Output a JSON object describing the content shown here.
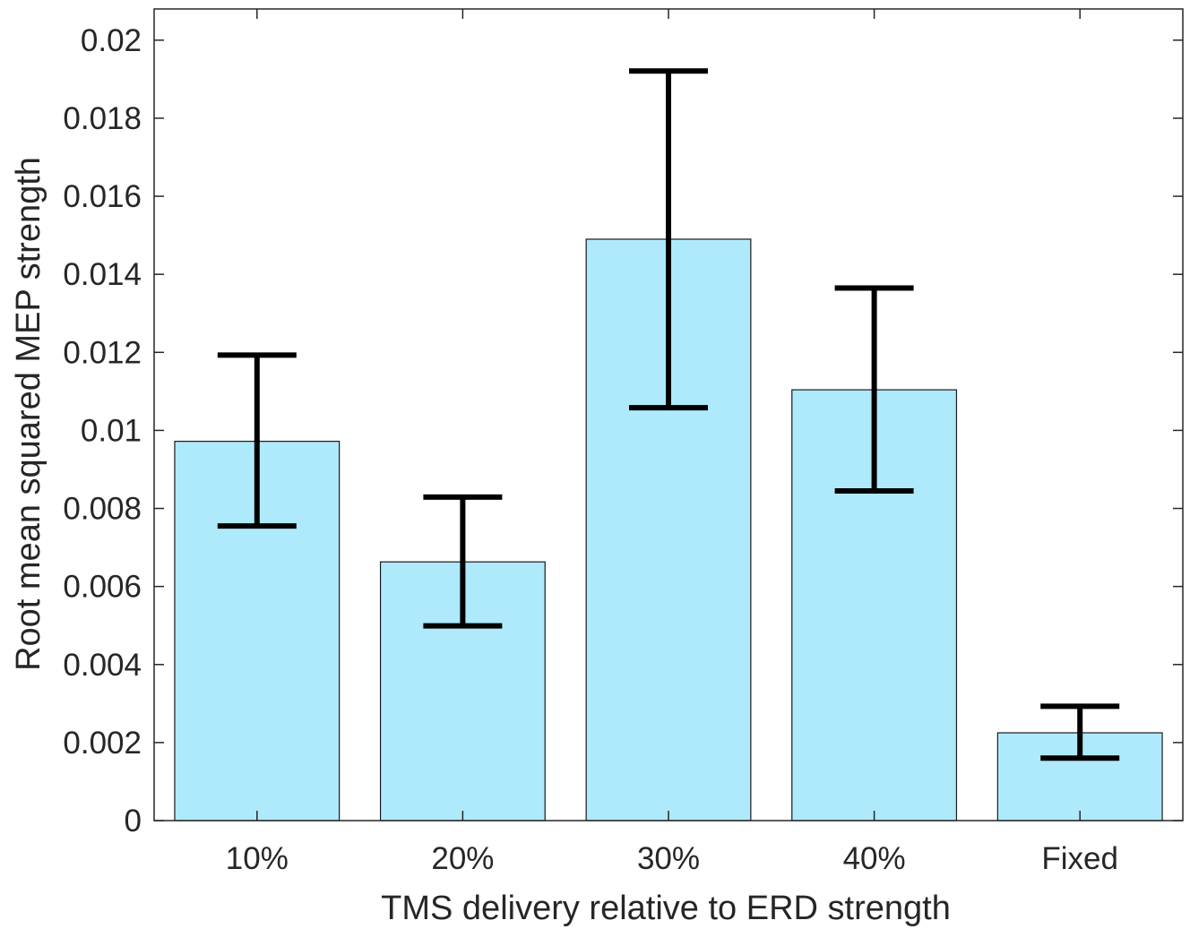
{
  "chart_data": {
    "type": "bar",
    "title": "",
    "xlabel": "TMS delivery relative to ERD strength",
    "ylabel": "Root mean squared MEP strength",
    "categories": [
      "10%",
      "20%",
      "30%",
      "40%",
      "Fixed"
    ],
    "values": [
      0.00972,
      0.00663,
      0.0149,
      0.01104,
      0.00225
    ],
    "error_low": [
      0.00755,
      0.00499,
      0.01058,
      0.00845,
      0.0016
    ],
    "error_high": [
      0.01193,
      0.00829,
      0.01921,
      0.01365,
      0.00293
    ],
    "ylim": [
      0,
      0.0208
    ],
    "yticks": [
      0,
      0.002,
      0.004,
      0.006,
      0.008,
      0.01,
      0.012,
      0.014,
      0.016,
      0.018,
      0.02
    ],
    "ytick_labels": [
      "0",
      "0.002",
      "0.004",
      "0.006",
      "0.008",
      "0.01",
      "0.012",
      "0.014",
      "0.016",
      "0.018",
      "0.02"
    ],
    "grid": false,
    "bar_color": "#aeeafc",
    "bar_edge_color": "#1a1a1a",
    "errorbar_color": "#000000",
    "axis_color": "#262626"
  }
}
